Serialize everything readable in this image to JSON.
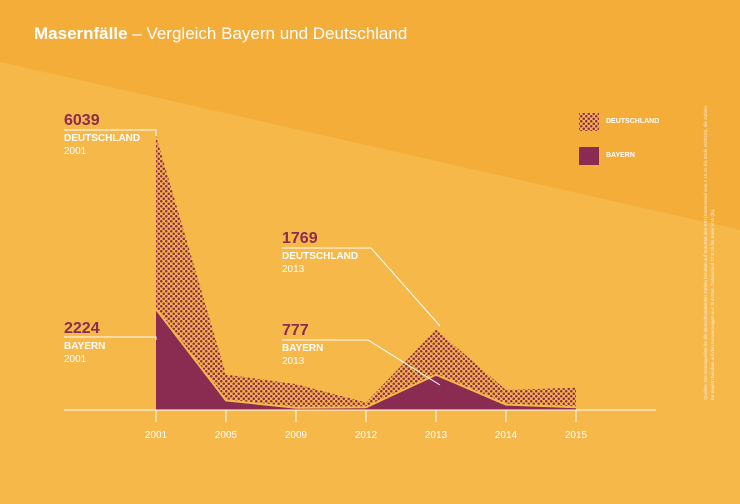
{
  "title": {
    "bold": "Masernfälle",
    "rest": " – Vergleich Bayern und Deutschland"
  },
  "colors": {
    "background": "#f7b84a",
    "background_dark": "#f5ad3a",
    "bayern": "#8a2b52",
    "deutschland_dots": "#8a2b52",
    "text": "#ffffff"
  },
  "annotations": {
    "de2001": {
      "value": "6039",
      "label": "DEUTSCHLAND",
      "year": "2001"
    },
    "by2001": {
      "value": "2224",
      "label": "BAYERN",
      "year": "2001"
    },
    "de2013": {
      "value": "1769",
      "label": "DEUTSCHLAND",
      "year": "2013"
    },
    "by2013": {
      "value": "777",
      "label": "BAYERN",
      "year": "2013"
    }
  },
  "legend": {
    "deutschland": "DEUTSCHLAND",
    "bayern": "BAYERN"
  },
  "source": "Quellen: Die Datenquellen für die deutschlandweiten Zahlen beruhen auf SurvStat des RKI (Datenstand vom 7.10.15 bis Ende 10/2015), die Zahlen für Bayern beruhen auf den Auswertungen aus SurvStat, Datenstand 27.9.15 bis Ende 9/15 (fb).",
  "chart_data": {
    "type": "area",
    "categories": [
      "2001",
      "2005",
      "2009",
      "2012",
      "2013",
      "2014",
      "2015"
    ],
    "series": [
      {
        "name": "DEUTSCHLAND",
        "values": [
          6039,
          781,
          571,
          166,
          1769,
          443,
          490
        ]
      },
      {
        "name": "BAYERN",
        "values": [
          2224,
          212,
          50,
          60,
          777,
          120,
          60
        ]
      }
    ],
    "ylim": [
      0,
      6039
    ]
  }
}
